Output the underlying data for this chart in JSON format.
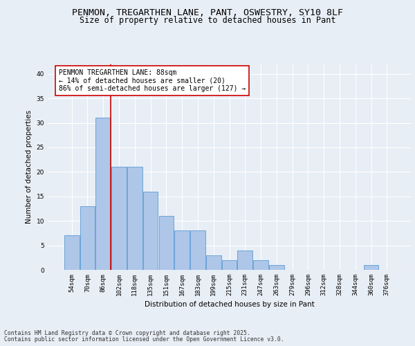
{
  "title_line1": "PENMON, TREGARTHEN LANE, PANT, OSWESTRY, SY10 8LF",
  "title_line2": "Size of property relative to detached houses in Pant",
  "xlabel": "Distribution of detached houses by size in Pant",
  "ylabel": "Number of detached properties",
  "bar_labels": [
    "54sqm",
    "70sqm",
    "86sqm",
    "102sqm",
    "118sqm",
    "135sqm",
    "151sqm",
    "167sqm",
    "183sqm",
    "199sqm",
    "215sqm",
    "231sqm",
    "247sqm",
    "263sqm",
    "279sqm",
    "296sqm",
    "312sqm",
    "328sqm",
    "344sqm",
    "360sqm",
    "376sqm"
  ],
  "bar_values": [
    7,
    13,
    31,
    21,
    21,
    16,
    11,
    8,
    8,
    3,
    2,
    4,
    2,
    1,
    0,
    0,
    0,
    0,
    0,
    1,
    0
  ],
  "bar_color": "#aec6e8",
  "bar_edgecolor": "#5b9bd5",
  "vline_x_index": 2,
  "vline_color": "#cc0000",
  "annotation_text": "PENMON TREGARTHEN LANE: 88sqm\n← 14% of detached houses are smaller (20)\n86% of semi-detached houses are larger (127) →",
  "annotation_box_color": "#ffffff",
  "annotation_box_edgecolor": "#cc0000",
  "ylim": [
    0,
    42
  ],
  "yticks": [
    0,
    5,
    10,
    15,
    20,
    25,
    30,
    35,
    40
  ],
  "bg_color": "#e8eef5",
  "plot_bg_color": "#e8eef5",
  "footer_line1": "Contains HM Land Registry data © Crown copyright and database right 2025.",
  "footer_line2": "Contains public sector information licensed under the Open Government Licence v3.0.",
  "grid_color": "#ffffff",
  "title_fontsize": 9.5,
  "subtitle_fontsize": 8.5,
  "tick_fontsize": 6.5,
  "label_fontsize": 7.5,
  "annotation_fontsize": 7,
  "footer_fontsize": 5.8
}
